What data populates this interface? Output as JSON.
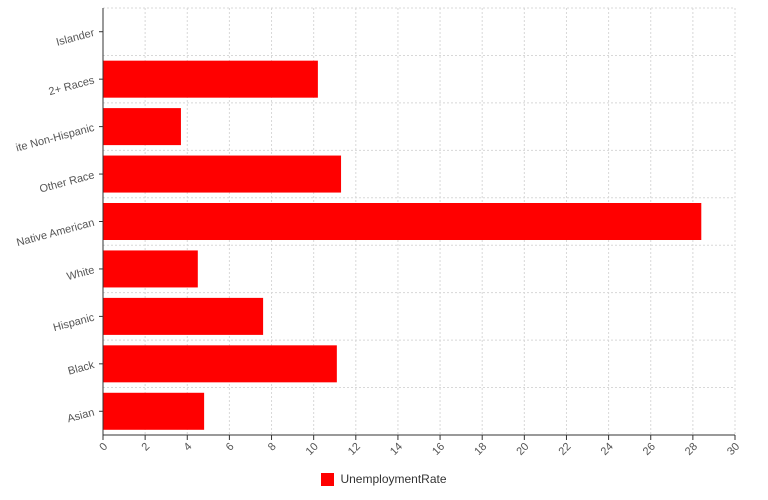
{
  "chart_data": {
    "type": "bar",
    "orientation": "horizontal",
    "categories": [
      "Islander",
      "2+ Races",
      "ite Non-Hispanic",
      "Other Race",
      "Native American",
      "White",
      "Hispanic",
      "Black",
      "Asian"
    ],
    "series": [
      {
        "name": "UnemploymentRate",
        "values": [
          0,
          10.2,
          3.7,
          11.3,
          28.4,
          4.5,
          7.6,
          11.1,
          4.8
        ]
      }
    ],
    "x_ticks": [
      "0",
      "2",
      "4",
      "6",
      "8",
      "10",
      "12",
      "14",
      "16",
      "18",
      "20",
      "22",
      "24",
      "26",
      "28",
      "30"
    ],
    "xlim": [
      0,
      30
    ],
    "grid": true,
    "legend_position": "bottom",
    "colors": {
      "bar": "#ff0000"
    }
  }
}
